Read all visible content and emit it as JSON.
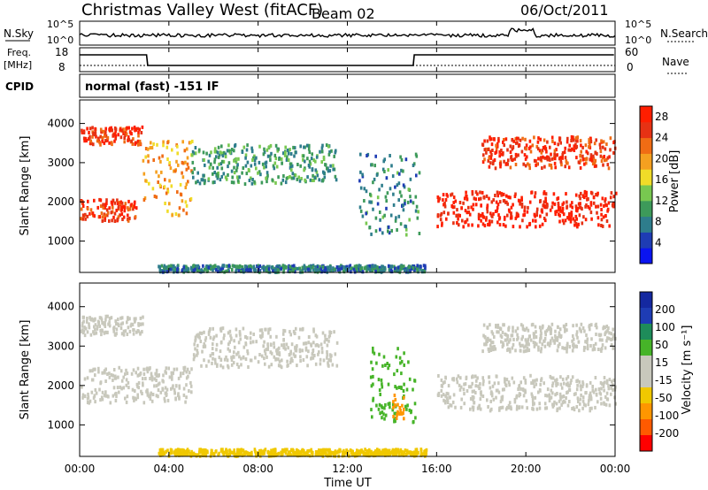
{
  "header": {
    "station": "Christmas Valley West (fitACF)",
    "beam": "Beam 02",
    "date": "06/Oct/2011"
  },
  "strip": {
    "nsky_label": "N.Sky",
    "nsearch_label": "N.Search",
    "noise_ticks": [
      "10^5",
      "10^0"
    ],
    "freq_label_1": "Freq.",
    "freq_label_2": "[MHz]",
    "freq_ticks": [
      "18",
      "8"
    ],
    "nave_label": "Nave",
    "nave_ticks": [
      "60",
      "0"
    ],
    "cpid_label": "CPID",
    "cpid_text": "normal (fast) -151 IF"
  },
  "colors": {
    "power": [
      "#0a14f0",
      "#1e3cb4",
      "#2e7d8c",
      "#3d9a5a",
      "#78c850",
      "#f0dc28",
      "#f5a020",
      "#f06c14",
      "#e63214",
      "#ff1e00"
    ],
    "velocity": [
      "#ff0000",
      "#ff5a00",
      "#ff9600",
      "#f0c800",
      "#c8c8bc",
      "#c8c8bc",
      "#46b428",
      "#1e8c5a",
      "#1e3cb4",
      "#1428a0"
    ],
    "ground_scatter": "#c8c8bc"
  },
  "chart_data": [
    {
      "type": "heatmap",
      "parameter": "power",
      "xlabel": "",
      "ylabel": "Slant Range [km]",
      "ylim": [
        200,
        4600
      ],
      "y_ticks": [
        "1000",
        "2000",
        "3000",
        "4000"
      ],
      "colorbar_label": "Power [dB]",
      "colorbar_ticks": [
        "4",
        "8",
        "12",
        "16",
        "20",
        "24",
        "28"
      ],
      "colorbar_range": [
        0,
        30
      ],
      "echo_bands": [
        {
          "from_hour": 0.0,
          "to_hour": 2.8,
          "range_km": [
            3500,
            3950
          ],
          "level_db": 26
        },
        {
          "from_hour": 0.0,
          "to_hour": 2.5,
          "range_km": [
            1550,
            2100
          ],
          "level_db": 26
        },
        {
          "from_hour": 2.8,
          "to_hour": 5.0,
          "range_km": [
            1700,
            3600
          ],
          "level_db": 20
        },
        {
          "from_hour": 5.0,
          "to_hour": 11.5,
          "range_km": [
            2500,
            3500
          ],
          "level_db": 10
        },
        {
          "from_hour": 12.5,
          "to_hour": 15.2,
          "range_km": [
            1200,
            3300
          ],
          "level_db": 9
        },
        {
          "from_hour": 16.0,
          "to_hour": 24.0,
          "range_km": [
            1400,
            2300
          ],
          "level_db": 28
        },
        {
          "from_hour": 18.0,
          "to_hour": 24.0,
          "range_km": [
            2900,
            3700
          ],
          "level_db": 26
        },
        {
          "from_hour": 3.5,
          "to_hour": 15.5,
          "range_km": [
            250,
            420
          ],
          "level_db": 8
        }
      ]
    },
    {
      "type": "heatmap",
      "parameter": "velocity",
      "xlabel": "Time UT",
      "ylabel": "Slant Range [km]",
      "ylim": [
        200,
        4600
      ],
      "y_ticks": [
        "1000",
        "2000",
        "3000",
        "4000"
      ],
      "x_ticks": [
        "00:00",
        "04:00",
        "08:00",
        "12:00",
        "16:00",
        "20:00",
        "00:00"
      ],
      "colorbar_label": "Velocity [m s⁻¹]",
      "colorbar_ticks": [
        "200",
        "100",
        "50",
        "15",
        "-15",
        "-50",
        "-100",
        "-200"
      ],
      "echo_bands": [
        {
          "from_hour": 0.0,
          "to_hour": 2.8,
          "range_km": [
            3300,
            3800
          ],
          "velocity": -5
        },
        {
          "from_hour": 0.0,
          "to_hour": 5.0,
          "range_km": [
            1600,
            2500
          ],
          "velocity": 0
        },
        {
          "from_hour": 5.0,
          "to_hour": 11.5,
          "range_km": [
            2500,
            3500
          ],
          "velocity": 5
        },
        {
          "from_hour": 13.0,
          "to_hour": 15.0,
          "range_km": [
            1100,
            3000
          ],
          "velocity": 30
        },
        {
          "from_hour": 14.0,
          "to_hour": 14.5,
          "range_km": [
            1200,
            1800
          ],
          "velocity": -80
        },
        {
          "from_hour": 16.0,
          "to_hour": 24.0,
          "range_km": [
            1400,
            2300
          ],
          "velocity": 0
        },
        {
          "from_hour": 18.0,
          "to_hour": 24.0,
          "range_km": [
            2900,
            3600
          ],
          "velocity": 0
        },
        {
          "from_hour": 3.5,
          "to_hour": 15.5,
          "range_km": [
            250,
            420
          ],
          "velocity": -40
        }
      ]
    }
  ]
}
